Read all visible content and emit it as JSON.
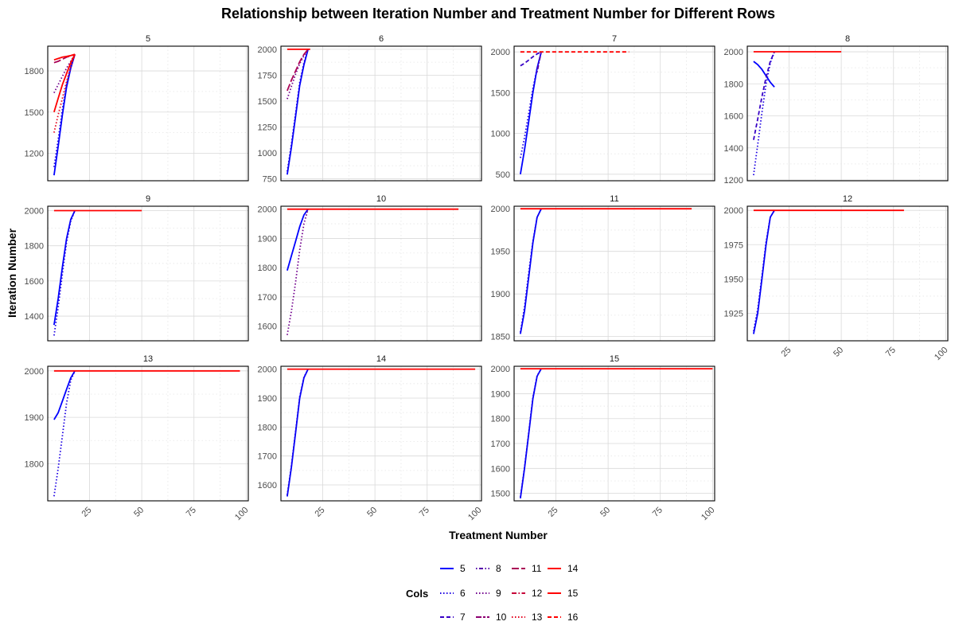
{
  "chart_data": {
    "type": "line",
    "title": "Relationship between Iteration Number and Treatment Number for Different Rows",
    "xlabel": "Treatment Number",
    "ylabel": "Iteration Number",
    "x_ticks": [
      "25",
      "50",
      "75",
      "100"
    ],
    "xlim": [
      5,
      101
    ],
    "legend": {
      "title": "Cols",
      "placement": "bottom",
      "items": [
        {
          "label": "5",
          "color": "#0000ff",
          "dash": "solid"
        },
        {
          "label": "6",
          "color": "#1c00e3",
          "dash": "dotted"
        },
        {
          "label": "7",
          "color": "#3800c6",
          "dash": "dashed"
        },
        {
          "label": "8",
          "color": "#5500aa",
          "dash": "dotdash"
        },
        {
          "label": "9",
          "color": "#71008e",
          "dash": "dotted"
        },
        {
          "label": "10",
          "color": "#8d0071",
          "dash": "twodash"
        },
        {
          "label": "11",
          "color": "#aa0055",
          "dash": "longdash"
        },
        {
          "label": "12",
          "color": "#c60038",
          "dash": "dashdot"
        },
        {
          "label": "13",
          "color": "#e3001c",
          "dash": "dotted"
        },
        {
          "label": "14",
          "color": "#ff0000",
          "dash": "solid"
        },
        {
          "label": "15",
          "color": "#ff0000",
          "dash": "solid"
        },
        {
          "label": "16",
          "color": "#ff0000",
          "dash": "dashed"
        }
      ]
    },
    "grid": true,
    "panels": [
      {
        "label": "5",
        "ylim": [
          1000,
          1980
        ],
        "yticks": [
          1200,
          1500,
          1800
        ],
        "series": [
          {
            "col": "5",
            "x": [
              8,
              10,
              12,
              14,
              16,
              18
            ],
            "y": [
              1040,
              1250,
              1480,
              1680,
              1820,
              1920
            ]
          },
          {
            "col": "6",
            "x": [
              8,
              10,
              12,
              14,
              16,
              18
            ],
            "y": [
              1100,
              1300,
              1520,
              1700,
              1830,
              1920
            ]
          },
          {
            "col": "9",
            "x": [
              8,
              10,
              12,
              14,
              16,
              18
            ],
            "y": [
              1640,
              1700,
              1760,
              1820,
              1870,
              1920
            ]
          },
          {
            "col": "11",
            "x": [
              8,
              10,
              12,
              14,
              16,
              18
            ],
            "y": [
              1860,
              1870,
              1885,
              1900,
              1910,
              1920
            ]
          },
          {
            "col": "13",
            "x": [
              8,
              10,
              12,
              14,
              16,
              18
            ],
            "y": [
              1350,
              1480,
              1600,
              1720,
              1830,
              1920
            ]
          },
          {
            "col": "14",
            "x": [
              8,
              10,
              12,
              14,
              16,
              18
            ],
            "y": [
              1880,
              1890,
              1900,
              1905,
              1912,
              1920
            ]
          },
          {
            "col": "15",
            "x": [
              8,
              10,
              12,
              14,
              16,
              18
            ],
            "y": [
              1500,
              1600,
              1700,
              1780,
              1860,
              1920
            ]
          }
        ]
      },
      {
        "label": "6",
        "ylim": [
          730,
          2030
        ],
        "yticks": [
          750,
          1000,
          1250,
          1500,
          1750,
          2000
        ],
        "series": [
          {
            "col": "5",
            "x": [
              8,
              10,
              12,
              14,
              16,
              18
            ],
            "y": [
              790,
              1050,
              1350,
              1650,
              1850,
              2000
            ]
          },
          {
            "col": "6",
            "x": [
              8,
              10,
              12,
              14,
              16,
              18
            ],
            "y": [
              820,
              1080,
              1380,
              1680,
              1870,
              2000
            ]
          },
          {
            "col": "9",
            "x": [
              8,
              10,
              12,
              14,
              16,
              18
            ],
            "y": [
              1520,
              1640,
              1760,
              1860,
              1940,
              2000
            ]
          },
          {
            "col": "11",
            "x": [
              8,
              10,
              12,
              14,
              16,
              18
            ],
            "y": [
              1600,
              1700,
              1790,
              1880,
              1950,
              2000
            ]
          },
          {
            "col": "14",
            "x": [
              8,
              19
            ],
            "y": [
              2000,
              2000
            ]
          }
        ]
      },
      {
        "label": "7",
        "ylim": [
          420,
          2070
        ],
        "yticks": [
          500,
          1000,
          1500,
          2000
        ],
        "series": [
          {
            "col": "5",
            "x": [
              8,
              10,
              12,
              14,
              16,
              18
            ],
            "y": [
              500,
              800,
              1150,
              1500,
              1800,
              2000
            ]
          },
          {
            "col": "6",
            "x": [
              8,
              10,
              12,
              14,
              16,
              18
            ],
            "y": [
              700,
              950,
              1250,
              1550,
              1800,
              2000
            ]
          },
          {
            "col": "7",
            "x": [
              8,
              10,
              12,
              14,
              16,
              18
            ],
            "y": [
              1830,
              1860,
              1900,
              1940,
              1975,
              2000
            ]
          },
          {
            "col": "8",
            "x": [
              16,
              17,
              18
            ],
            "y": [
              1750,
              1880,
              2000
            ]
          },
          {
            "col": "16",
            "x": [
              8,
              60
            ],
            "y": [
              2000,
              2000
            ]
          }
        ]
      },
      {
        "label": "8",
        "ylim": [
          1195,
          2035
        ],
        "yticks": [
          1200,
          1400,
          1600,
          1800,
          2000
        ],
        "series": [
          {
            "col": "5",
            "x": [
              8,
              10,
              12,
              14,
              16,
              18
            ],
            "y": [
              1940,
              1920,
              1890,
              1850,
              1810,
              1780
            ]
          },
          {
            "col": "6",
            "x": [
              8,
              10,
              12,
              14,
              16,
              18
            ],
            "y": [
              1230,
              1420,
              1620,
              1800,
              1930,
              2000
            ]
          },
          {
            "col": "7",
            "x": [
              8,
              10,
              12,
              14,
              16,
              18
            ],
            "y": [
              1450,
              1580,
              1720,
              1840,
              1940,
              2000
            ]
          },
          {
            "col": "14",
            "x": [
              8,
              50
            ],
            "y": [
              2000,
              2000
            ]
          }
        ]
      },
      {
        "label": "9",
        "ylim": [
          1260,
          2025
        ],
        "yticks": [
          1400,
          1600,
          1800,
          2000
        ],
        "series": [
          {
            "col": "5",
            "x": [
              8,
              10,
              12,
              14,
              16,
              18
            ],
            "y": [
              1350,
              1500,
              1680,
              1840,
              1950,
              2000
            ]
          },
          {
            "col": "6",
            "x": [
              8,
              10,
              12,
              14,
              16,
              18
            ],
            "y": [
              1290,
              1450,
              1640,
              1820,
              1940,
              2000
            ]
          },
          {
            "col": "14",
            "x": [
              8,
              50
            ],
            "y": [
              2000,
              2000
            ]
          }
        ]
      },
      {
        "label": "10",
        "ylim": [
          1550,
          2010
        ],
        "yticks": [
          1600,
          1700,
          1800,
          1900,
          2000
        ],
        "series": [
          {
            "col": "5",
            "x": [
              8,
              10,
              12,
              14,
              16,
              18
            ],
            "y": [
              1790,
              1840,
              1890,
              1940,
              1980,
              2000
            ]
          },
          {
            "col": "9",
            "x": [
              8,
              10,
              12,
              14,
              16,
              18
            ],
            "y": [
              1570,
              1650,
              1750,
              1860,
              1950,
              2000
            ]
          },
          {
            "col": "14",
            "x": [
              8,
              90
            ],
            "y": [
              2000,
              2000
            ]
          }
        ]
      },
      {
        "label": "11",
        "ylim": [
          1845,
          2003
        ],
        "yticks": [
          1850,
          1900,
          1950,
          2000
        ],
        "series": [
          {
            "col": "5",
            "x": [
              8,
              10,
              12,
              14,
              16,
              18
            ],
            "y": [
              1853,
              1880,
              1920,
              1960,
              1990,
              2000
            ]
          },
          {
            "col": "6",
            "x": [
              8,
              10,
              12,
              14,
              16,
              18
            ],
            "y": [
              1855,
              1885,
              1925,
              1962,
              1990,
              2000
            ]
          },
          {
            "col": "14",
            "x": [
              8,
              90
            ],
            "y": [
              2000,
              2000
            ]
          }
        ]
      },
      {
        "label": "12",
        "ylim": [
          1905,
          2003
        ],
        "yticks": [
          1925,
          1950,
          1975,
          2000
        ],
        "series": [
          {
            "col": "5",
            "x": [
              8,
              10,
              12,
              14,
              16,
              18
            ],
            "y": [
              1910,
              1925,
              1950,
              1975,
              1995,
              2000
            ]
          },
          {
            "col": "6",
            "x": [
              8,
              10,
              12,
              14,
              16,
              18
            ],
            "y": [
              1912,
              1928,
              1952,
              1977,
              1995,
              2000
            ]
          },
          {
            "col": "14",
            "x": [
              8,
              80
            ],
            "y": [
              2000,
              2000
            ]
          }
        ]
      },
      {
        "label": "13",
        "ylim": [
          1720,
          2010
        ],
        "yticks": [
          1800,
          1900,
          2000
        ],
        "series": [
          {
            "col": "5",
            "x": [
              8,
              10,
              12,
              14,
              16,
              18
            ],
            "y": [
              1895,
              1910,
              1935,
              1960,
              1985,
              2000
            ]
          },
          {
            "col": "6",
            "x": [
              8,
              10,
              12,
              14,
              16,
              18
            ],
            "y": [
              1730,
              1790,
              1860,
              1930,
              1980,
              2000
            ]
          },
          {
            "col": "14",
            "x": [
              8,
              97
            ],
            "y": [
              2000,
              2000
            ]
          }
        ]
      },
      {
        "label": "14",
        "ylim": [
          1545,
          2010
        ],
        "yticks": [
          1600,
          1700,
          1800,
          1900,
          2000
        ],
        "series": [
          {
            "col": "5",
            "x": [
              8,
              10,
              12,
              14,
              16,
              18
            ],
            "y": [
              1560,
              1660,
              1780,
              1900,
              1970,
              2000
            ]
          },
          {
            "col": "6",
            "x": [
              8,
              10,
              12,
              14,
              16,
              18
            ],
            "y": [
              1565,
              1665,
              1785,
              1905,
              1972,
              2000
            ]
          },
          {
            "col": "14",
            "x": [
              8,
              98
            ],
            "y": [
              2000,
              2000
            ]
          }
        ]
      },
      {
        "label": "15",
        "ylim": [
          1470,
          2010
        ],
        "yticks": [
          1500,
          1600,
          1700,
          1800,
          1900,
          2000
        ],
        "series": [
          {
            "col": "5",
            "x": [
              8,
              10,
              12,
              14,
              16,
              18
            ],
            "y": [
              1480,
              1600,
              1740,
              1880,
              1970,
              2000
            ]
          },
          {
            "col": "6",
            "x": [
              8,
              10,
              12,
              14,
              16,
              18
            ],
            "y": [
              1485,
              1605,
              1745,
              1885,
              1972,
              2000
            ]
          },
          {
            "col": "14",
            "x": [
              8,
              100
            ],
            "y": [
              2000,
              2000
            ]
          }
        ]
      }
    ]
  }
}
